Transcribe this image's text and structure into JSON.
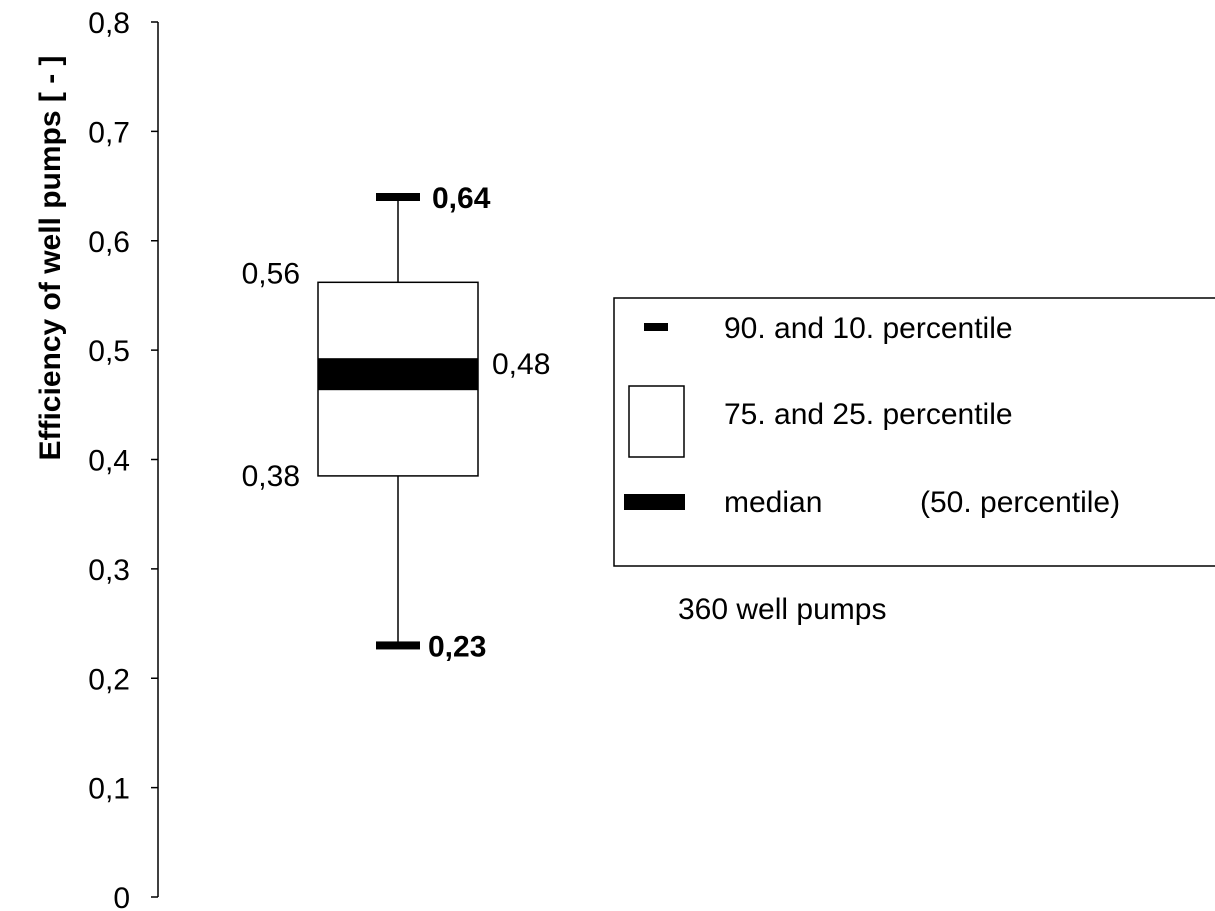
{
  "chart_data": {
    "type": "boxplot",
    "ylabel": "Efficiency of well pumps [ - ]",
    "ylim": [
      0,
      0.8
    ],
    "yticks": [
      {
        "value": 0,
        "label": "0"
      },
      {
        "value": 0.1,
        "label": "0,1"
      },
      {
        "value": 0.2,
        "label": "0,2"
      },
      {
        "value": 0.3,
        "label": "0,3"
      },
      {
        "value": 0.4,
        "label": "0,4"
      },
      {
        "value": 0.5,
        "label": "0,5"
      },
      {
        "value": 0.6,
        "label": "0,6"
      },
      {
        "value": 0.7,
        "label": "0,7"
      },
      {
        "value": 0.8,
        "label": "0,8"
      }
    ],
    "grid": false,
    "legend_position": "right",
    "box": {
      "p10": 0.23,
      "p25": 0.385,
      "median": 0.478,
      "p75": 0.562,
      "p90": 0.64,
      "labels": {
        "p90": "0,64",
        "p75": "0,56",
        "median": "0,48",
        "p25": "0,38",
        "p10": "0,23"
      }
    },
    "legend": [
      {
        "marker": "whisker-cap",
        "text": "90. and 10. percentile"
      },
      {
        "marker": "box",
        "text": "75. and 25. percentile"
      },
      {
        "marker": "median-bar",
        "text": "median",
        "extra": "(50. percentile)"
      }
    ],
    "note": "360 well pumps"
  }
}
